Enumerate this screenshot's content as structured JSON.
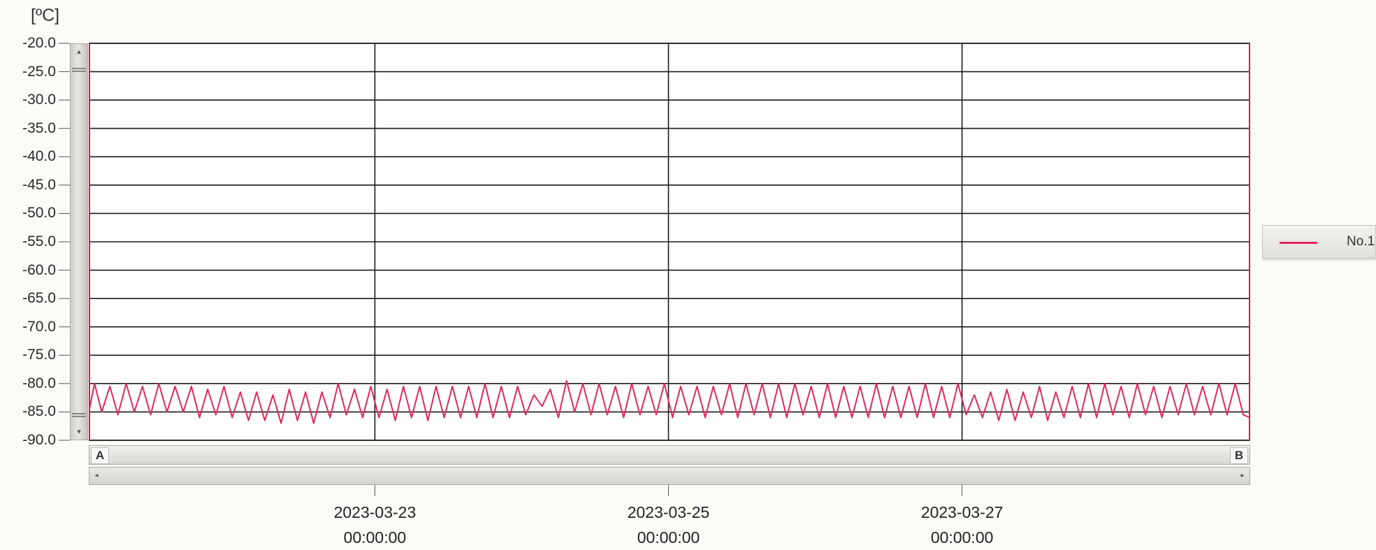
{
  "chart_data": {
    "type": "line",
    "ylabel": "[ºC]",
    "ylim": [
      -90,
      -20
    ],
    "y_ticks": [
      "-20.0",
      "-25.0",
      "-30.0",
      "-35.0",
      "-40.0",
      "-45.0",
      "-50.0",
      "-55.0",
      "-60.0",
      "-65.0",
      "-70.0",
      "-75.0",
      "-80.0",
      "-85.0",
      "-90.0"
    ],
    "x_ticks": [
      {
        "date": "2023-03-23",
        "time": "00:00:00"
      },
      {
        "date": "2023-03-25",
        "time": "00:00:00"
      },
      {
        "date": "2023-03-27",
        "time": "00:00:00"
      }
    ],
    "x_range": [
      "2023-03-21T01:20",
      "2023-03-28T23:00"
    ],
    "grid": true,
    "legend_position": "right",
    "series": [
      {
        "name": "No.1",
        "color": "#e0285a",
        "x": [
          "2023-03-21T01:20",
          "2023-03-21T02:10",
          "2023-03-21T03:20",
          "2023-03-21T04:40",
          "2023-03-21T06:00",
          "2023-03-21T07:20",
          "2023-03-21T08:40",
          "2023-03-21T10:00",
          "2023-03-21T11:20",
          "2023-03-21T12:40",
          "2023-03-21T14:00",
          "2023-03-21T15:20",
          "2023-03-21T16:40",
          "2023-03-21T18:00",
          "2023-03-21T19:20",
          "2023-03-21T20:40",
          "2023-03-21T22:00",
          "2023-03-21T23:20",
          "2023-03-22T00:40",
          "2023-03-22T02:00",
          "2023-03-22T03:20",
          "2023-03-22T04:40",
          "2023-03-22T06:00",
          "2023-03-22T07:20",
          "2023-03-22T08:40",
          "2023-03-22T10:00",
          "2023-03-22T11:20",
          "2023-03-22T12:40",
          "2023-03-22T14:00",
          "2023-03-22T15:20",
          "2023-03-22T16:40",
          "2023-03-22T18:00",
          "2023-03-22T19:20",
          "2023-03-22T20:40",
          "2023-03-22T22:00",
          "2023-03-22T23:20",
          "2023-03-23T00:40",
          "2023-03-23T02:00",
          "2023-03-23T03:20",
          "2023-03-23T04:40",
          "2023-03-23T06:00",
          "2023-03-23T07:20",
          "2023-03-23T08:40",
          "2023-03-23T10:00",
          "2023-03-23T11:20",
          "2023-03-23T12:40",
          "2023-03-23T14:00",
          "2023-03-23T15:20",
          "2023-03-23T16:40",
          "2023-03-23T18:00",
          "2023-03-23T19:20",
          "2023-03-23T20:40",
          "2023-03-23T22:00",
          "2023-03-23T23:20",
          "2023-03-24T00:40",
          "2023-03-24T02:00",
          "2023-03-24T03:20",
          "2023-03-24T04:40",
          "2023-03-24T06:00",
          "2023-03-24T07:20",
          "2023-03-24T08:40",
          "2023-03-24T10:00",
          "2023-03-24T11:20",
          "2023-03-24T12:40",
          "2023-03-24T14:00",
          "2023-03-24T15:20",
          "2023-03-24T16:40",
          "2023-03-24T18:00",
          "2023-03-24T19:20",
          "2023-03-24T20:40",
          "2023-03-24T22:00",
          "2023-03-24T23:20",
          "2023-03-25T00:40",
          "2023-03-25T02:00",
          "2023-03-25T03:20",
          "2023-03-25T04:40",
          "2023-03-25T06:00",
          "2023-03-25T07:20",
          "2023-03-25T08:40",
          "2023-03-25T10:00",
          "2023-03-25T11:20",
          "2023-03-25T12:40",
          "2023-03-25T14:00",
          "2023-03-25T15:20",
          "2023-03-25T16:40",
          "2023-03-25T18:00",
          "2023-03-25T19:20",
          "2023-03-25T20:40",
          "2023-03-25T22:00",
          "2023-03-25T23:20",
          "2023-03-26T00:40",
          "2023-03-26T02:00",
          "2023-03-26T03:20",
          "2023-03-26T04:40",
          "2023-03-26T06:00",
          "2023-03-26T07:20",
          "2023-03-26T08:40",
          "2023-03-26T10:00",
          "2023-03-26T11:20",
          "2023-03-26T12:40",
          "2023-03-26T14:00",
          "2023-03-26T15:20",
          "2023-03-26T16:40",
          "2023-03-26T18:00",
          "2023-03-26T19:20",
          "2023-03-26T20:40",
          "2023-03-26T22:00",
          "2023-03-26T23:20",
          "2023-03-27T00:40",
          "2023-03-27T02:00",
          "2023-03-27T03:20",
          "2023-03-27T04:40",
          "2023-03-27T06:00",
          "2023-03-27T07:20",
          "2023-03-27T08:40",
          "2023-03-27T10:00",
          "2023-03-27T11:20",
          "2023-03-27T12:40",
          "2023-03-27T14:00",
          "2023-03-27T15:20",
          "2023-03-27T16:40",
          "2023-03-27T18:00",
          "2023-03-27T19:20",
          "2023-03-27T20:40",
          "2023-03-27T22:00",
          "2023-03-27T23:20",
          "2023-03-28T00:40",
          "2023-03-28T02:00",
          "2023-03-28T03:20",
          "2023-03-28T04:40",
          "2023-03-28T06:00",
          "2023-03-28T07:20",
          "2023-03-28T08:40",
          "2023-03-28T10:00",
          "2023-03-28T11:20",
          "2023-03-28T12:40",
          "2023-03-28T14:00",
          "2023-03-28T15:20",
          "2023-03-28T16:40",
          "2023-03-28T18:00",
          "2023-03-28T19:20",
          "2023-03-28T20:40",
          "2023-03-28T22:00",
          "2023-03-28T23:00"
        ],
        "values": [
          -84.5,
          -80.0,
          -85.0,
          -80.5,
          -85.5,
          -80.0,
          -85.0,
          -80.5,
          -85.5,
          -80.0,
          -85.0,
          -80.5,
          -85.0,
          -80.5,
          -86.0,
          -81.0,
          -85.5,
          -80.5,
          -86.0,
          -81.5,
          -86.5,
          -81.5,
          -86.5,
          -82.0,
          -87.0,
          -81.0,
          -86.5,
          -81.5,
          -87.0,
          -81.5,
          -86.0,
          -80.0,
          -85.5,
          -81.0,
          -86.0,
          -80.5,
          -86.0,
          -81.0,
          -86.5,
          -80.5,
          -86.0,
          -80.5,
          -86.5,
          -80.5,
          -86.0,
          -80.5,
          -86.0,
          -80.5,
          -86.0,
          -80.0,
          -86.0,
          -80.5,
          -86.0,
          -80.5,
          -85.5,
          -82.0,
          -84.0,
          -81.0,
          -86.0,
          -79.5,
          -85.0,
          -80.0,
          -85.5,
          -80.0,
          -85.5,
          -80.5,
          -86.0,
          -80.0,
          -85.5,
          -80.5,
          -85.5,
          -80.0,
          -86.0,
          -80.5,
          -85.5,
          -80.5,
          -86.0,
          -80.5,
          -85.5,
          -80.0,
          -86.0,
          -80.0,
          -85.5,
          -80.0,
          -86.0,
          -80.0,
          -86.0,
          -80.0,
          -85.5,
          -80.5,
          -86.0,
          -80.0,
          -86.0,
          -80.5,
          -86.0,
          -80.5,
          -86.0,
          -80.0,
          -86.0,
          -80.5,
          -86.0,
          -80.5,
          -86.0,
          -80.0,
          -86.0,
          -80.5,
          -86.0,
          -80.0,
          -85.5,
          -82.0,
          -86.0,
          -81.5,
          -86.5,
          -81.0,
          -86.5,
          -81.5,
          -86.0,
          -80.5,
          -86.5,
          -81.5,
          -86.0,
          -80.5,
          -86.0,
          -80.0,
          -86.0,
          -80.0,
          -85.5,
          -80.5,
          -86.0,
          -80.0,
          -85.5,
          -80.5,
          -86.0,
          -80.5,
          -85.5,
          -80.0,
          -85.5,
          -80.5,
          -85.5,
          -80.0,
          -85.5,
          -80.0,
          -85.5,
          -86.0
        ]
      }
    ]
  },
  "controls": {
    "marker_a": "A",
    "marker_b": "B",
    "scroll_up": "▴",
    "scroll_down": "▾",
    "scroll_left": "◂",
    "scroll_right": "▸"
  }
}
